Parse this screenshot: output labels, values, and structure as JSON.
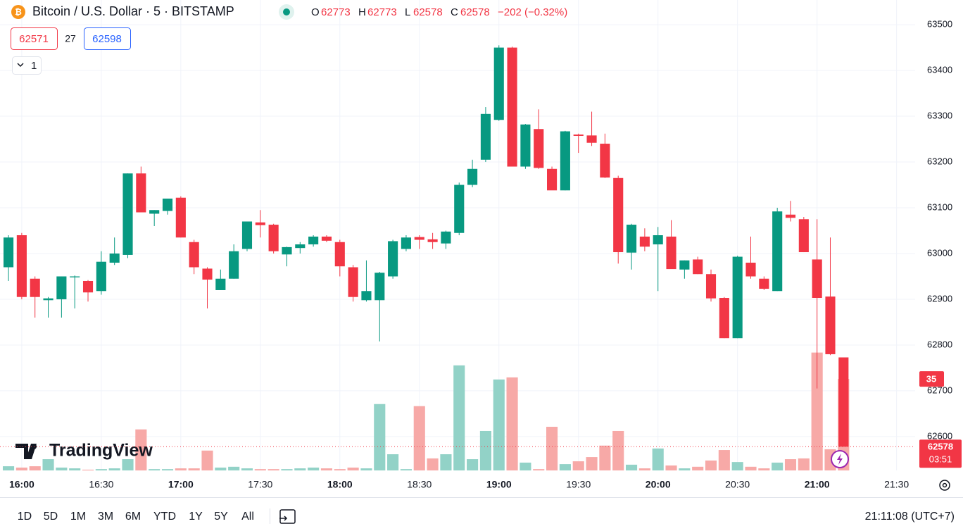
{
  "header": {
    "symbol": "Bitcoin / U.S. Dollar · 5 · BITSTAMP",
    "o_label": "O",
    "h_label": "H",
    "l_label": "L",
    "c_label": "C",
    "change": "−202 (−0.32%)",
    "bid": "62571",
    "spread": "27",
    "ask": "62598",
    "indicators": "1"
  },
  "logo": "TradingView",
  "countdown": "03:51",
  "toolbar": {
    "ranges": [
      "1D",
      "5D",
      "1M",
      "3M",
      "6M",
      "YTD",
      "1Y",
      "5Y",
      "All"
    ],
    "clock": "21:11:08 (UTC+7)"
  },
  "chart_data": {
    "type": "candlestick",
    "open": [
      62970,
      63040,
      62945,
      62898,
      62900,
      62948,
      62940,
      62918,
      62980,
      62997,
      63175,
      63087,
      63093,
      63122,
      63025,
      62967,
      62920,
      62945,
      63010,
      63068,
      63063,
      62998,
      63012,
      63020,
      63037,
      63025,
      62970,
      62898,
      62898,
      62950,
      63010,
      63036,
      63031,
      63022,
      63045,
      63150,
      63205,
      63292,
      63450,
      63190,
      63272,
      63185,
      63138,
      63260,
      63258,
      63240,
      63165,
      63002,
      63037,
      63020,
      63037,
      62965,
      62987,
      62955,
      62903,
      62815,
      62980,
      62945,
      62918,
      63085,
      63075,
      62987,
      62906,
      62773
    ],
    "high": [
      63040,
      63045,
      62950,
      62905,
      62950,
      62952,
      62942,
      63005,
      63035,
      63175,
      63190,
      63095,
      63120,
      63125,
      63030,
      62970,
      62965,
      63020,
      63070,
      63095,
      63065,
      63015,
      63025,
      63040,
      63040,
      63030,
      62975,
      62985,
      62960,
      63030,
      63040,
      63040,
      63045,
      63050,
      63155,
      63205,
      63320,
      63455,
      63452,
      63283,
      63315,
      63190,
      63268,
      63262,
      63310,
      63262,
      63170,
      63065,
      63055,
      63058,
      63073,
      62985,
      62993,
      62965,
      62905,
      62995,
      63037,
      62950,
      63100,
      63115,
      63080,
      63075,
      63035,
      62773
    ],
    "low": [
      62940,
      62900,
      62860,
      62860,
      62860,
      62880,
      62895,
      62910,
      62975,
      62990,
      63090,
      63060,
      63085,
      63035,
      62955,
      62880,
      62920,
      62945,
      63005,
      63035,
      63000,
      62972,
      63000,
      63015,
      63025,
      62950,
      62895,
      62895,
      62808,
      62945,
      63005,
      63010,
      63010,
      63010,
      63040,
      63145,
      63200,
      63290,
      63190,
      63185,
      63185,
      63140,
      63138,
      63220,
      63235,
      63165,
      62978,
      62965,
      63005,
      62918,
      62967,
      62945,
      62955,
      62895,
      62815,
      62815,
      62945,
      62920,
      62918,
      63070,
      63003,
      62705,
      62778,
      62578
    ],
    "close": [
      63035,
      62905,
      62905,
      62902,
      62950,
      62950,
      62915,
      62982,
      63000,
      63175,
      63090,
      63095,
      63120,
      63035,
      62970,
      62943,
      62945,
      63005,
      63070,
      63062,
      63005,
      63014,
      63020,
      63037,
      63028,
      62972,
      62905,
      62918,
      62958,
      63027,
      63035,
      63030,
      63025,
      63048,
      63150,
      63185,
      63305,
      63450,
      63190,
      63282,
      63187,
      63138,
      63267,
      63257,
      63242,
      63166,
      63003,
      63063,
      63015,
      63040,
      62966,
      62985,
      62955,
      62902,
      62815,
      62993,
      62950,
      62923,
      63092,
      63078,
      63003,
      62903,
      62780,
      62578
    ],
    "volume": [
      1.6,
      1.1,
      1.6,
      4.3,
      1.1,
      0.8,
      0.3,
      0.5,
      0.8,
      4.3,
      15.7,
      0.5,
      0.5,
      0.8,
      0.8,
      7.6,
      1.1,
      1.4,
      0.8,
      0.5,
      0.5,
      0.5,
      0.8,
      1.1,
      0.8,
      0.5,
      1.1,
      0.8,
      25.4,
      6.2,
      0.5,
      24.6,
      4.6,
      6.2,
      40.2,
      4.3,
      15.1,
      34.8,
      35.6,
      3.0,
      0.5,
      16.7,
      2.4,
      3.5,
      5.1,
      9.5,
      15.1,
      2.2,
      0.8,
      8.4,
      1.9,
      0.8,
      1.4,
      3.8,
      7.8,
      3.2,
      1.4,
      0.8,
      3.0,
      4.3,
      4.6,
      45.1,
      8.1,
      35
    ],
    "up_color": "#089981",
    "down_color": "#f23645",
    "volume_up_color": "#92d2c7",
    "volume_down_color": "#f7a9a7",
    "ylim": [
      62526,
      63554
    ],
    "yticks": [
      62600,
      62700,
      62800,
      62900,
      63000,
      63100,
      63200,
      63300,
      63400,
      63500
    ],
    "volume_ylim": [
      0,
      48.5
    ],
    "xlim": [
      -0.64,
      68.4
    ],
    "xticks": [
      {
        "value": 1,
        "label": "16:00"
      },
      {
        "value": 7,
        "label": "16:30"
      },
      {
        "value": 13,
        "label": "17:00"
      },
      {
        "value": 19,
        "label": "17:30"
      },
      {
        "value": 25,
        "label": "18:00"
      },
      {
        "value": 31,
        "label": "18:30"
      },
      {
        "value": 37,
        "label": "19:00"
      },
      {
        "value": 43,
        "label": "19:30"
      },
      {
        "value": 49,
        "label": "20:00"
      },
      {
        "value": 55,
        "label": "20:30"
      },
      {
        "value": 61,
        "label": "21:00"
      },
      {
        "value": 67,
        "label": "21:30"
      }
    ],
    "grid": true
  }
}
